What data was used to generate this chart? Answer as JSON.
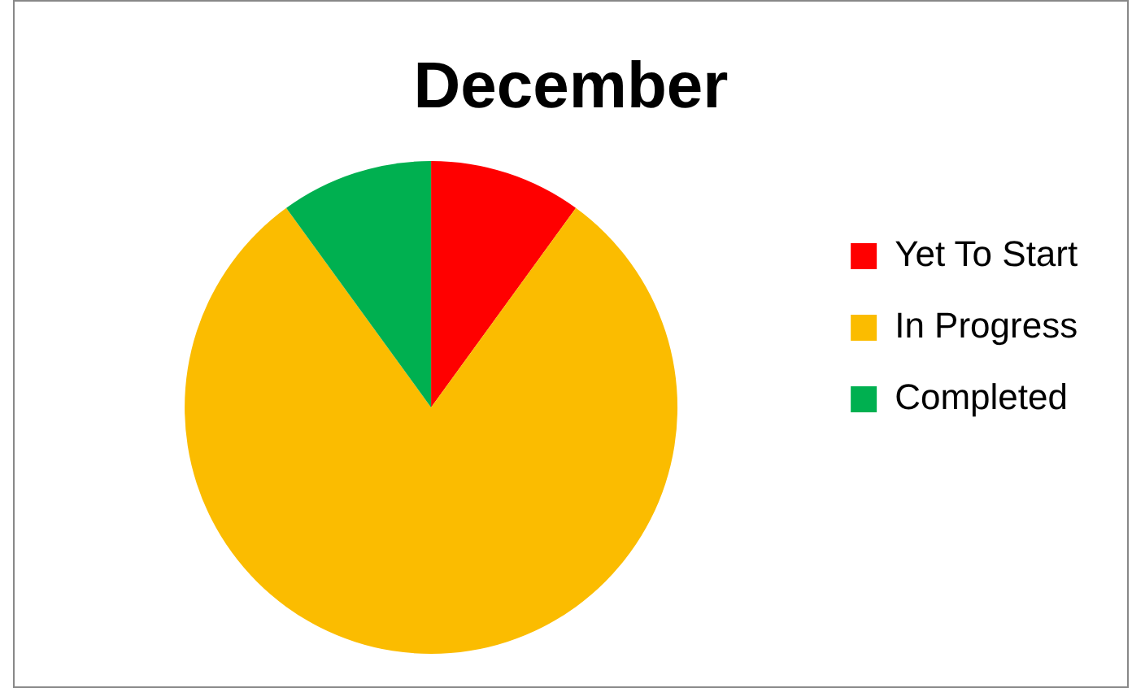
{
  "chart_data": {
    "type": "pie",
    "title": "December",
    "categories": [
      "Yet To Start",
      "In Progress",
      "Completed"
    ],
    "values": [
      10,
      80,
      10
    ],
    "colors": [
      "#ff0000",
      "#fbbc00",
      "#00b050"
    ],
    "legend": "right"
  }
}
